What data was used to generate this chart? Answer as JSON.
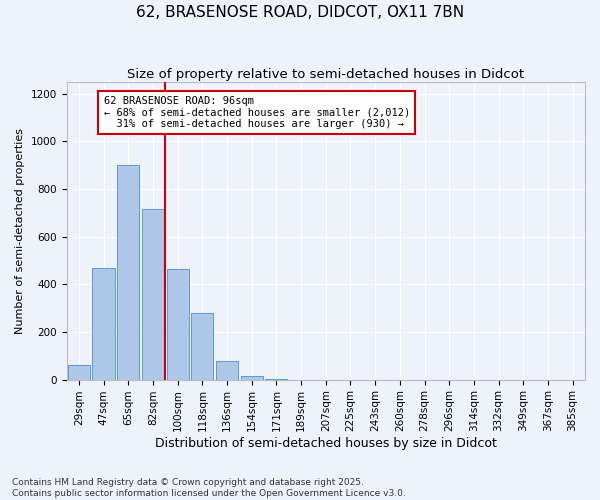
{
  "title1": "62, BRASENOSE ROAD, DIDCOT, OX11 7BN",
  "title2": "Size of property relative to semi-detached houses in Didcot",
  "xlabel": "Distribution of semi-detached houses by size in Didcot",
  "ylabel": "Number of semi-detached properties",
  "categories": [
    "29sqm",
    "47sqm",
    "65sqm",
    "82sqm",
    "100sqm",
    "118sqm",
    "136sqm",
    "154sqm",
    "171sqm",
    "189sqm",
    "207sqm",
    "225sqm",
    "243sqm",
    "260sqm",
    "278sqm",
    "296sqm",
    "314sqm",
    "332sqm",
    "349sqm",
    "367sqm",
    "385sqm"
  ],
  "values": [
    60,
    470,
    900,
    715,
    465,
    280,
    80,
    15,
    3,
    0,
    0,
    0,
    0,
    0,
    0,
    0,
    0,
    0,
    0,
    0,
    0
  ],
  "bar_color": "#aec6e8",
  "bar_edge_color": "#5b9bd5",
  "vline_index": 4,
  "vline_color": "#cc0000",
  "annotation_text": "62 BRASENOSE ROAD: 96sqm\n← 68% of semi-detached houses are smaller (2,012)\n  31% of semi-detached houses are larger (930) →",
  "annotation_box_color": "#cc0000",
  "ylim": [
    0,
    1250
  ],
  "yticks": [
    0,
    200,
    400,
    600,
    800,
    1000,
    1200
  ],
  "background_color": "#eef2fb",
  "grid_color": "#ffffff",
  "footer": "Contains HM Land Registry data © Crown copyright and database right 2025.\nContains public sector information licensed under the Open Government Licence v3.0.",
  "title1_fontsize": 11,
  "title2_fontsize": 9.5,
  "xlabel_fontsize": 9,
  "ylabel_fontsize": 8,
  "tick_fontsize": 7.5,
  "annotation_fontsize": 7.5,
  "footer_fontsize": 6.5
}
